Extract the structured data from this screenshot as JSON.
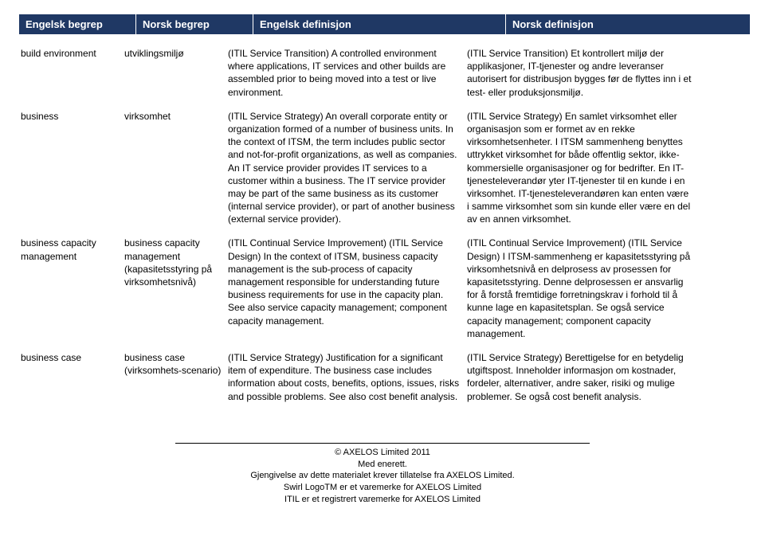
{
  "header": {
    "col1": "Engelsk begrep",
    "col2": "Norsk begrep",
    "col3": "Engelsk definisjon",
    "col4": "Norsk definisjon"
  },
  "rows": [
    {
      "en_term": "build environment",
      "no_term": "utviklingsmiljø",
      "en_def": "(ITIL Service Transition) A controlled environment where applications, IT services and other builds are assembled prior to being moved into a test or live environment.",
      "no_def": "(ITIL Service Transition) Et kontrollert miljø der applikasjoner, IT-tjenester og andre leveranser autorisert for distribusjon bygges før de flyttes inn i et test- eller produksjonsmiljø."
    },
    {
      "en_term": "business",
      "no_term": "virksomhet",
      "en_def": "(ITIL Service Strategy) An overall corporate entity or organization formed of a number of business units. In the context of ITSM, the term includes public sector and not-for-profit organizations, as well as companies. An IT service provider provides IT services to a customer within a business. The IT service provider may be part of the same business as its customer (internal service provider), or part of another business (external service provider).",
      "no_def": "(ITIL Service Strategy) En samlet virksomhet eller organisasjon som er formet av en rekke virksomhetsenheter. I ITSM sammenheng benyttes uttrykket virksomhet for både offentlig sektor, ikke-kommersielle organisasjoner og for bedrifter. En IT-tjenesteleverandør yter IT-tjenester til en kunde i en virksomhet. IT-tjenesteleverandøren kan enten være i samme virksomhet som sin kunde eller være en del av en annen virksomhet."
    },
    {
      "en_term": "business capacity management",
      "no_term": "business capacity management (kapasitetsstyring på virksomhetsnivå)",
      "en_def": "(ITIL Continual Service Improvement) (ITIL Service Design) In the context of ITSM, business capacity management is the sub-process of capacity management responsible for understanding future business requirements for use in the capacity plan. See also service capacity management; component capacity management.",
      "no_def": "(ITIL Continual Service Improvement) (ITIL Service Design) I ITSM-sammenheng er kapasitetsstyring på virksomhetsnivå en delprosess av prosessen for kapasitetsstyring. Denne delprosessen er ansvarlig for å forstå fremtidige forretningskrav i forhold til å kunne lage en kapasitetsplan. Se også service capacity management; component capacity management."
    },
    {
      "en_term": "business case",
      "no_term": "business case (virksomhets-scenario)",
      "en_def": "(ITIL Service Strategy) Justification for a significant item of expenditure. The business case includes information about costs, benefits, options, issues, risks and possible problems. See also cost benefit analysis.",
      "no_def": "(ITIL Service Strategy) Berettigelse for en betydelig utgiftspost. Inneholder informasjon om kostnader, fordeler, alternativer, andre saker, risiki og mulige problemer. Se også cost benefit analysis."
    }
  ],
  "footer": {
    "line1": "© AXELOS Limited 2011",
    "line2": "Med enerett.",
    "line3": "Gjengivelse av dette materialet krever tillatelse fra AXELOS Limited.",
    "line4": "Swirl LogoTM er et varemerke for AXELOS Limited",
    "line5": "ITIL er et registrert varemerke for AXELOS Limited"
  }
}
